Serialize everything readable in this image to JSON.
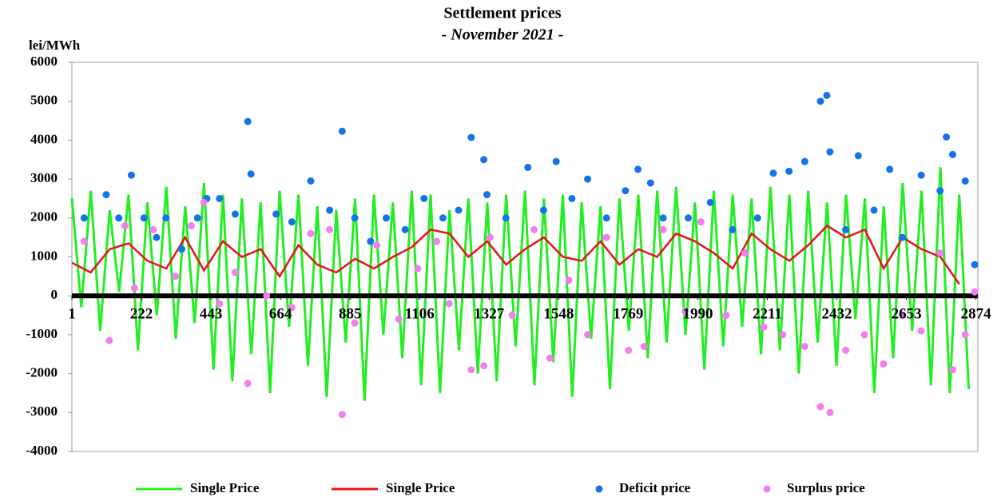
{
  "chart_data": {
    "type": "line",
    "title": "Settlement prices",
    "subtitle": "- November 2021 -",
    "y_label": "lei/MWh",
    "xlim": [
      1,
      2880
    ],
    "ylim": [
      -4000,
      6000
    ],
    "xticks": [
      1,
      222,
      443,
      664,
      885,
      1106,
      1327,
      1548,
      1769,
      1990,
      2211,
      2432,
      2653,
      2874
    ],
    "yticks": [
      -4000,
      -3000,
      -2000,
      -1000,
      0,
      1000,
      2000,
      3000,
      4000,
      5000,
      6000
    ],
    "grid": false,
    "legend": "bottom",
    "series": [
      {
        "name": "Single Price",
        "type": "line",
        "color": "#22ee22",
        "x": [
          1,
          31,
          61,
          91,
          121,
          151,
          181,
          211,
          241,
          271,
          301,
          331,
          361,
          391,
          421,
          451,
          481,
          511,
          541,
          571,
          601,
          631,
          661,
          691,
          721,
          751,
          781,
          811,
          841,
          871,
          901,
          931,
          961,
          991,
          1021,
          1051,
          1081,
          1111,
          1141,
          1171,
          1201,
          1231,
          1261,
          1291,
          1321,
          1351,
          1381,
          1411,
          1441,
          1471,
          1501,
          1531,
          1561,
          1591,
          1621,
          1651,
          1681,
          1711,
          1741,
          1771,
          1801,
          1831,
          1861,
          1891,
          1921,
          1951,
          1981,
          2011,
          2041,
          2071,
          2101,
          2131,
          2161,
          2191,
          2221,
          2251,
          2281,
          2311,
          2341,
          2371,
          2401,
          2431,
          2461,
          2491,
          2521,
          2551,
          2581,
          2611,
          2641,
          2671,
          2701,
          2731,
          2761,
          2791,
          2821,
          2851
        ],
        "values": [
          2500,
          -300,
          2700,
          -900,
          2200,
          100,
          2600,
          -1400,
          2400,
          -500,
          2800,
          -1100,
          2300,
          -700,
          2900,
          -1900,
          2600,
          -2200,
          2500,
          -1500,
          2400,
          -2500,
          2700,
          -800,
          2600,
          -1800,
          2300,
          -2600,
          2200,
          -1200,
          2500,
          -2700,
          2600,
          -1000,
          2400,
          -1600,
          2700,
          -2300,
          2600,
          -2500,
          2200,
          -1400,
          2500,
          -2000,
          2400,
          -2200,
          2600,
          -1300,
          2700,
          -2300,
          2500,
          -1700,
          2600,
          -2600,
          2400,
          -1100,
          2300,
          -2400,
          2500,
          -900,
          2600,
          -1600,
          2700,
          -1200,
          2800,
          -1000,
          2400,
          -1900,
          2700,
          -1300,
          2600,
          -800,
          2500,
          -1500,
          2800,
          -1400,
          2600,
          -2000,
          2700,
          -1200,
          2400,
          -1800,
          2600,
          -600,
          2500,
          -2500,
          2300,
          -1600,
          2900,
          -900,
          2700,
          -2300,
          3300,
          -2500,
          2600,
          -2400
        ]
      },
      {
        "name": "Single Price",
        "type": "line",
        "color": "#e8141a",
        "x": [
          1,
          61,
          121,
          181,
          241,
          301,
          361,
          421,
          481,
          541,
          601,
          661,
          721,
          781,
          841,
          901,
          961,
          1021,
          1081,
          1141,
          1201,
          1261,
          1321,
          1381,
          1441,
          1501,
          1561,
          1621,
          1681,
          1741,
          1801,
          1861,
          1921,
          1981,
          2041,
          2101,
          2161,
          2221,
          2281,
          2341,
          2401,
          2461,
          2521,
          2581,
          2641,
          2701,
          2761,
          2821
        ],
        "values": [
          850,
          600,
          1200,
          1350,
          900,
          700,
          1500,
          650,
          1400,
          1000,
          1200,
          500,
          1300,
          800,
          600,
          950,
          700,
          1000,
          1250,
          1700,
          1600,
          1000,
          1400,
          800,
          1200,
          1500,
          1000,
          900,
          1400,
          800,
          1200,
          1000,
          1600,
          1400,
          1100,
          700,
          1600,
          1200,
          900,
          1300,
          1800,
          1500,
          1700,
          700,
          1500,
          1200,
          1000,
          300
        ]
      },
      {
        "name": "Deficit price",
        "type": "scatter",
        "color": "#1473e6",
        "x": [
          40,
          110,
          150,
          190,
          230,
          270,
          300,
          350,
          400,
          430,
          470,
          520,
          560,
          570,
          650,
          700,
          760,
          820,
          860,
          900,
          950,
          1000,
          1060,
          1120,
          1180,
          1230,
          1270,
          1310,
          1320,
          1380,
          1450,
          1500,
          1540,
          1590,
          1640,
          1700,
          1760,
          1800,
          1840,
          1880,
          1960,
          2030,
          2100,
          2180,
          2230,
          2280,
          2330,
          2380,
          2400,
          2410,
          2460,
          2500,
          2550,
          2600,
          2640,
          2700,
          2760,
          2780,
          2800,
          2840,
          2870
        ],
        "values": [
          2000,
          2600,
          2000,
          3100,
          2000,
          1500,
          2000,
          1200,
          2000,
          2500,
          2500,
          2100,
          4480,
          3130,
          2100,
          1900,
          2950,
          2200,
          4230,
          2000,
          1400,
          2000,
          1700,
          2500,
          2000,
          2200,
          4070,
          3500,
          2600,
          2000,
          3300,
          2200,
          3450,
          2500,
          3000,
          2000,
          2700,
          3250,
          2900,
          2000,
          2000,
          2400,
          1700,
          2000,
          3150,
          3200,
          3450,
          5000,
          5150,
          3700,
          1700,
          3600,
          2200,
          3250,
          1500,
          3100,
          2700,
          4080,
          3630,
          2950,
          800
        ]
      },
      {
        "name": "Surplus price",
        "type": "scatter",
        "color": "#f27ef0",
        "x": [
          40,
          120,
          170,
          200,
          260,
          330,
          380,
          420,
          470,
          520,
          560,
          620,
          700,
          760,
          820,
          860,
          900,
          970,
          1040,
          1100,
          1160,
          1200,
          1270,
          1310,
          1330,
          1400,
          1470,
          1520,
          1580,
          1640,
          1700,
          1770,
          1820,
          1880,
          1950,
          2000,
          2080,
          2140,
          2200,
          2260,
          2330,
          2380,
          2410,
          2460,
          2520,
          2580,
          2640,
          2700,
          2760,
          2800,
          2840,
          2870
        ],
        "values": [
          1400,
          -1150,
          1800,
          200,
          1700,
          500,
          1800,
          2400,
          -200,
          600,
          -2250,
          0,
          -300,
          1600,
          1700,
          -3050,
          -700,
          1300,
          -600,
          700,
          1400,
          -200,
          -1900,
          -1800,
          1500,
          -500,
          1700,
          -1600,
          400,
          -1000,
          1500,
          -1400,
          -1300,
          1700,
          -400,
          1900,
          -500,
          1100,
          -800,
          -1000,
          -1300,
          -2850,
          -3000,
          -1400,
          -1000,
          -1750,
          -500,
          -900,
          1100,
          -1900,
          -1000,
          100
        ]
      }
    ]
  }
}
